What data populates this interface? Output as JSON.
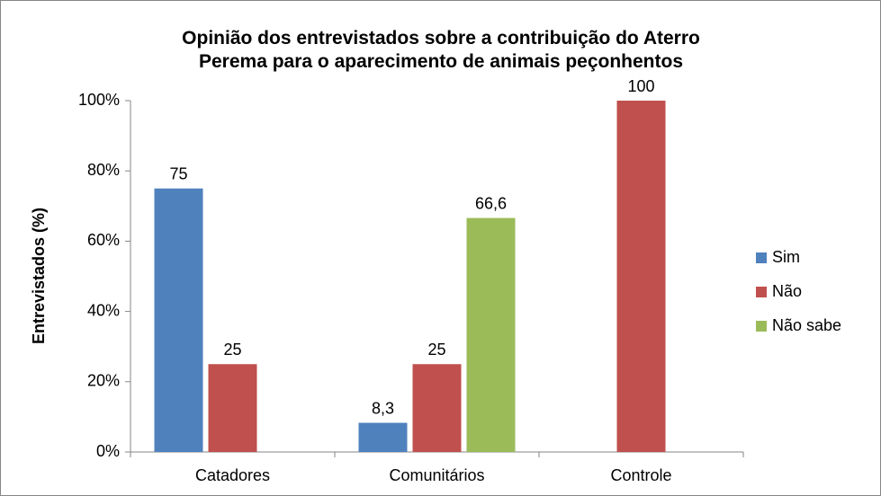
{
  "chart_data": {
    "type": "bar",
    "title": "Opinião dos entrevistados sobre a contribuição do Aterro Perema para o aparecimento de animais peçonhentos",
    "ylabel": "Entrevistados (%)",
    "categories": [
      "Catadores",
      "Comunitários",
      "Controle"
    ],
    "series": [
      {
        "name": "Sim",
        "color": "#4f81bd",
        "values": [
          75,
          8.3,
          null
        ],
        "value_labels": [
          "75",
          "8,3",
          null
        ]
      },
      {
        "name": "Não",
        "color": "#c0504d",
        "values": [
          25,
          25,
          100
        ]
      },
      {
        "name": "Não sabe",
        "color": "#9bbb59",
        "values": [
          null,
          66.6,
          null
        ],
        "value_labels": [
          null,
          "66,6",
          null
        ]
      }
    ],
    "ylim": [
      0,
      100
    ],
    "yticks": [
      {
        "value": 0,
        "label": "0%"
      },
      {
        "value": 20,
        "label": "20%"
      },
      {
        "value": 40,
        "label": "40%"
      },
      {
        "value": 60,
        "label": "60%"
      },
      {
        "value": 80,
        "label": "80%"
      },
      {
        "value": 100,
        "label": "100%"
      }
    ],
    "grid": false,
    "legend": "right"
  }
}
